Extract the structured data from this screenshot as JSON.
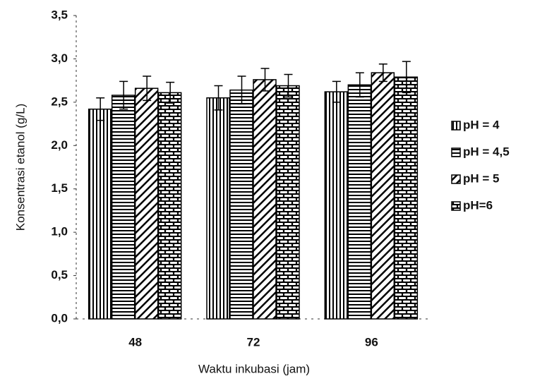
{
  "chart_data": {
    "type": "bar",
    "y_label": "Konsentrasi etanol (g/L)",
    "x_label": "Waktu inkubasi (jam)",
    "categories": [
      "48",
      "72",
      "96"
    ],
    "series": [
      {
        "name": "pH = 4",
        "color": "#000000",
        "pattern": "vertical",
        "values": [
          2.42,
          2.55,
          2.62
        ],
        "errors": [
          0.13,
          0.14,
          0.12
        ]
      },
      {
        "name": "pH = 4,5",
        "color": "#000000",
        "pattern": "horizontal",
        "values": [
          2.58,
          2.64,
          2.7
        ],
        "errors": [
          0.16,
          0.16,
          0.14
        ]
      },
      {
        "name": "pH = 5",
        "color": "#000000",
        "pattern": "diagonal",
        "values": [
          2.66,
          2.76,
          2.84
        ],
        "errors": [
          0.14,
          0.13,
          0.1
        ]
      },
      {
        "name": "pH=6",
        "color": "#000000",
        "pattern": "brick",
        "values": [
          2.61,
          2.69,
          2.79
        ],
        "errors": [
          0.12,
          0.13,
          0.18
        ]
      }
    ],
    "ylim": [
      0,
      3.5
    ],
    "yticks": [
      {
        "value": 0,
        "label": "0,0"
      },
      {
        "value": 0.5,
        "label": "0,5"
      },
      {
        "value": 1,
        "label": "1,0"
      },
      {
        "value": 1.5,
        "label": "1,5"
      },
      {
        "value": 2,
        "label": "2,0"
      },
      {
        "value": 2.5,
        "label": "2,5"
      },
      {
        "value": 3,
        "label": "3,0"
      },
      {
        "value": 3.5,
        "label": "3,5"
      }
    ],
    "grid": false,
    "legend": "right"
  }
}
